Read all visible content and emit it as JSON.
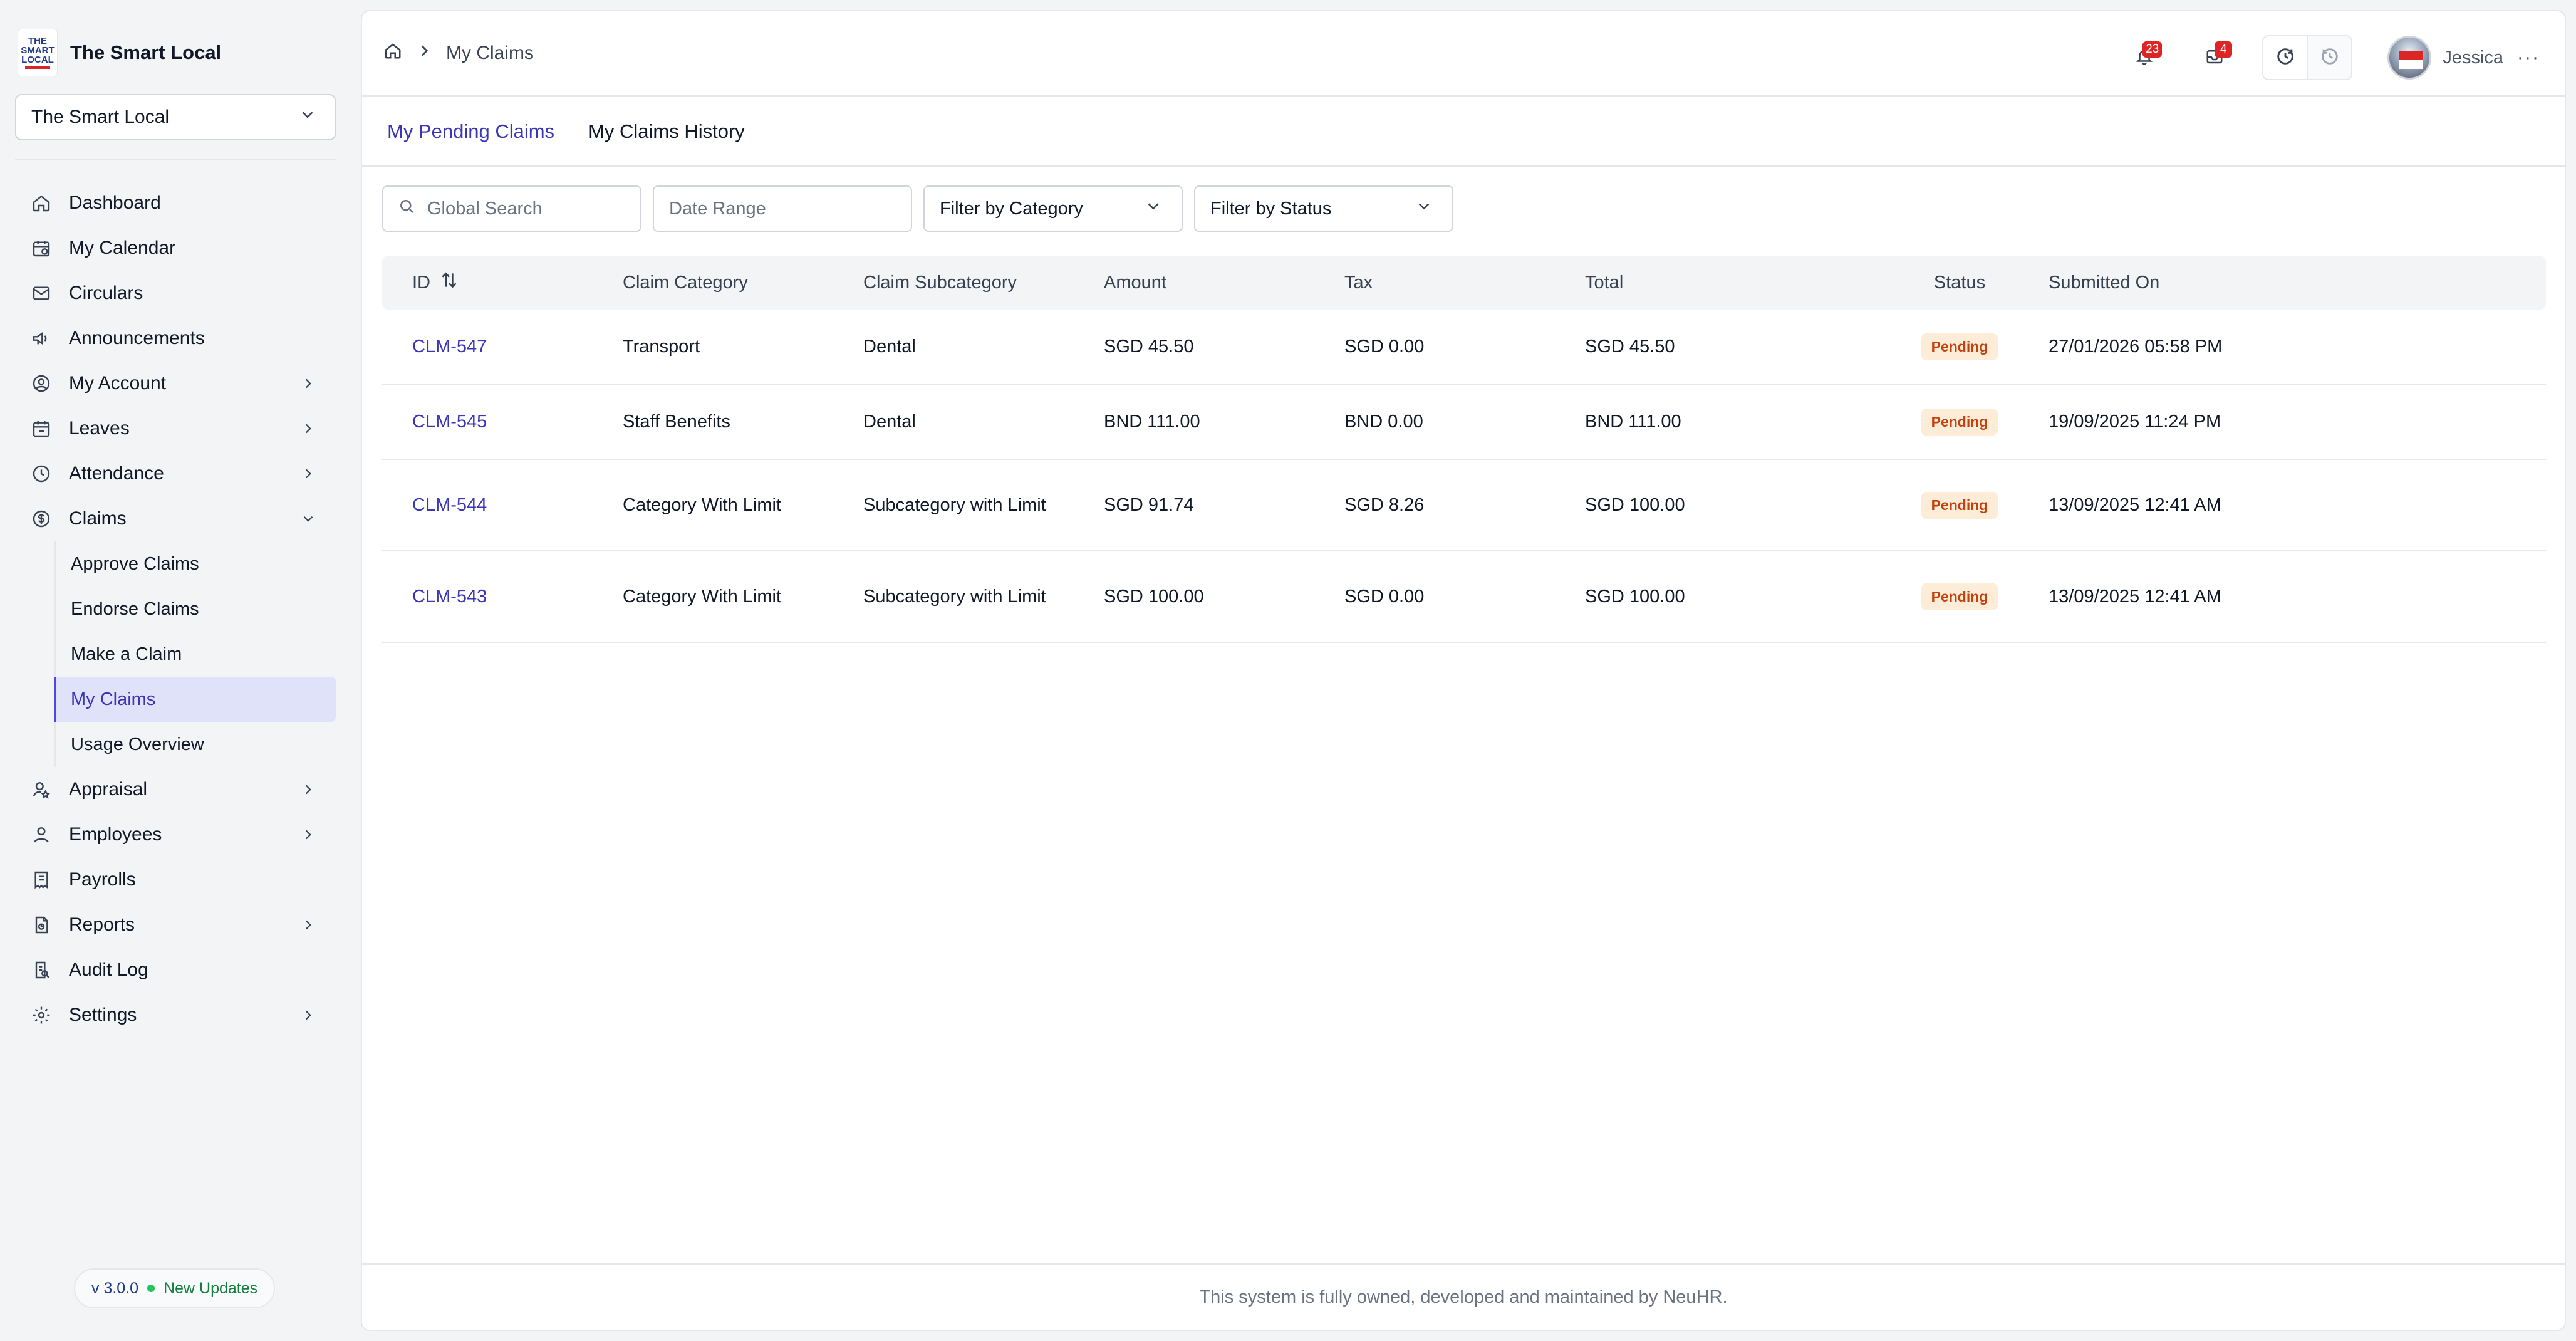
{
  "brand": {
    "name": "The Smart Local",
    "logo_lines": [
      "THE",
      "SMART",
      "LOCAL"
    ]
  },
  "org_select": {
    "value": "The Smart Local"
  },
  "sidebar": {
    "items": [
      {
        "label": "Dashboard",
        "icon": "home-icon",
        "chevron": false
      },
      {
        "label": "My Calendar",
        "icon": "calendar-icon",
        "chevron": false
      },
      {
        "label": "Circulars",
        "icon": "mail-icon",
        "chevron": false
      },
      {
        "label": "Announcements",
        "icon": "megaphone-icon",
        "chevron": false
      },
      {
        "label": "My Account",
        "icon": "user-circle-icon",
        "chevron": true
      },
      {
        "label": "Leaves",
        "icon": "calendar-leave-icon",
        "chevron": true
      },
      {
        "label": "Attendance",
        "icon": "clock-icon",
        "chevron": true
      },
      {
        "label": "Claims",
        "icon": "dollar-circle-icon",
        "chevron": true,
        "expanded": true
      }
    ],
    "claims_sub": [
      {
        "label": "Approve Claims"
      },
      {
        "label": "Endorse Claims"
      },
      {
        "label": "Make a Claim"
      },
      {
        "label": "My Claims",
        "active": true
      },
      {
        "label": "Usage Overview"
      }
    ],
    "items_after": [
      {
        "label": "Appraisal",
        "icon": "user-star-icon",
        "chevron": true
      },
      {
        "label": "Employees",
        "icon": "user-icon",
        "chevron": true
      },
      {
        "label": "Payrolls",
        "icon": "receipt-icon",
        "chevron": false
      },
      {
        "label": "Reports",
        "icon": "report-icon",
        "chevron": true
      },
      {
        "label": "Audit Log",
        "icon": "audit-icon",
        "chevron": false
      },
      {
        "label": "Settings",
        "icon": "gear-icon",
        "chevron": true
      }
    ]
  },
  "version": {
    "number": "v 3.0.0",
    "updates": "New Updates"
  },
  "breadcrumb": {
    "current": "My Claims"
  },
  "topbar": {
    "notifications_count": "23",
    "inbox_count": "4",
    "user_name": "Jessica",
    "more": "···"
  },
  "tabs": [
    {
      "label": "My Pending Claims",
      "active": true
    },
    {
      "label": "My Claims History",
      "active": false
    }
  ],
  "filters": {
    "search_placeholder": "Global Search",
    "date_placeholder": "Date Range",
    "category": "Filter by Category",
    "status": "Filter by Status"
  },
  "table": {
    "headers": {
      "id": "ID",
      "category": "Claim Category",
      "subcategory": "Claim Subcategory",
      "amount": "Amount",
      "tax": "Tax",
      "total": "Total",
      "status": "Status",
      "submitted": "Submitted On"
    },
    "rows": [
      {
        "id": "CLM-547",
        "category": "Transport",
        "subcategory": "Dental",
        "amount": "SGD 45.50",
        "tax": "SGD 0.00",
        "total": "SGD 45.50",
        "status": "Pending",
        "submitted": "27/01/2026 05:58 PM"
      },
      {
        "id": "CLM-545",
        "category": "Staff Benefits",
        "subcategory": "Dental",
        "amount": "BND 111.00",
        "tax": "BND 0.00",
        "total": "BND 111.00",
        "status": "Pending",
        "submitted": "19/09/2025 11:24 PM"
      },
      {
        "id": "CLM-544",
        "category": "Category With Limit",
        "subcategory": "Subcategory with Limit",
        "amount": "SGD 91.74",
        "tax": "SGD 8.26",
        "total": "SGD 100.00",
        "status": "Pending",
        "submitted": "13/09/2025 12:41 AM"
      },
      {
        "id": "CLM-543",
        "category": "Category With Limit",
        "subcategory": "Subcategory with Limit",
        "amount": "SGD 100.00",
        "tax": "SGD 0.00",
        "total": "SGD 100.00",
        "status": "Pending",
        "submitted": "13/09/2025 12:41 AM"
      }
    ]
  },
  "footer": {
    "text": "This system is fully owned, developed and maintained by NeuHR."
  },
  "colors": {
    "accent": "#4f46e5",
    "active_bg": "#e0e2fa",
    "pending_bg": "#fdecd8",
    "pending_text": "#c2410c",
    "badge": "#dc2626"
  }
}
